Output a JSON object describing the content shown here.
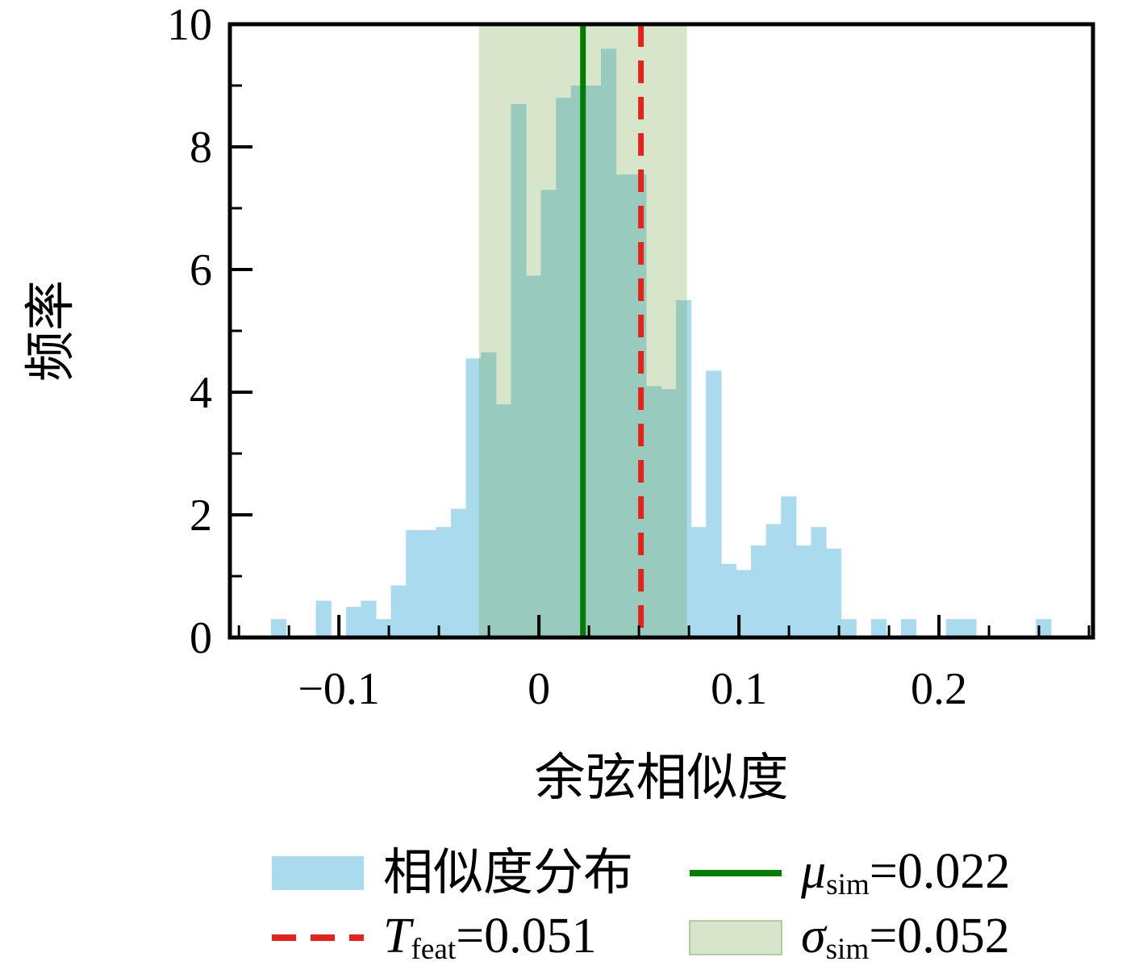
{
  "figure": {
    "background": "#ffffff"
  },
  "chart_data": {
    "type": "bar",
    "title": "",
    "xlabel": "余弦相似度",
    "ylabel": "频率",
    "xlim": [
      -0.1545,
      0.277
    ],
    "ylim": [
      0,
      10
    ],
    "grid": false,
    "legend_position": "below plot, 2 columns",
    "bin_width": 0.0075,
    "bins": [
      [
        -0.134,
        0.3
      ],
      [
        -0.1115,
        0.6
      ],
      [
        -0.0965,
        0.5
      ],
      [
        -0.089,
        0.6
      ],
      [
        -0.0815,
        0.3
      ],
      [
        -0.074,
        0.85
      ],
      [
        -0.0665,
        1.75
      ],
      [
        -0.059,
        1.75
      ],
      [
        -0.0515,
        1.8
      ],
      [
        -0.044,
        2.1
      ],
      [
        -0.0365,
        4.55
      ],
      [
        -0.029,
        4.65
      ],
      [
        -0.0215,
        3.8
      ],
      [
        -0.014,
        8.7
      ],
      [
        -0.0065,
        5.9
      ],
      [
        0.001,
        7.3
      ],
      [
        0.0085,
        8.8
      ],
      [
        0.016,
        9.0
      ],
      [
        0.0235,
        9.0
      ],
      [
        0.031,
        9.6
      ],
      [
        0.0385,
        7.55
      ],
      [
        0.046,
        7.55
      ],
      [
        0.0535,
        4.1
      ],
      [
        0.061,
        4.05
      ],
      [
        0.0685,
        5.5
      ],
      [
        0.076,
        1.8
      ],
      [
        0.0835,
        4.35
      ],
      [
        0.091,
        1.2
      ],
      [
        0.0985,
        1.1
      ],
      [
        0.106,
        1.5
      ],
      [
        0.1135,
        1.85
      ],
      [
        0.121,
        2.3
      ],
      [
        0.1285,
        1.5
      ],
      [
        0.136,
        1.8
      ],
      [
        0.1435,
        1.45
      ],
      [
        0.151,
        0.3
      ],
      [
        0.166,
        0.3
      ],
      [
        0.181,
        0.3
      ],
      [
        0.2035,
        0.3
      ],
      [
        0.211,
        0.3
      ],
      [
        0.2485,
        0.3
      ]
    ],
    "xticks": [
      {
        "value": -0.1,
        "label": "−0.1"
      },
      {
        "value": 0.0,
        "label": "0"
      },
      {
        "value": 0.1,
        "label": "0.1"
      },
      {
        "value": 0.2,
        "label": "0.2"
      }
    ],
    "yticks": [
      {
        "value": 0,
        "label": "0"
      },
      {
        "value": 2,
        "label": "2"
      },
      {
        "value": 4,
        "label": "4"
      },
      {
        "value": 6,
        "label": "6"
      },
      {
        "value": 8,
        "label": "8"
      },
      {
        "value": 10,
        "label": "10"
      }
    ],
    "x_minor_step": 0.025,
    "y_minor_step": 1,
    "overlays": {
      "mu_line": {
        "value": 0.022,
        "style": "solid"
      },
      "t_line": {
        "value": 0.051,
        "style": "dashed"
      },
      "sigma_band": {
        "center": 0.022,
        "halfwidth": 0.052
      }
    },
    "colors": {
      "hist": "#a9daee",
      "band": "rgba(110,160,70,0.28)",
      "band_edge": "rgba(110,160,70,0.45)",
      "mu_line": "#007d00",
      "t_line": "#e3241c",
      "axis": "#000000"
    }
  },
  "legend": {
    "hist": {
      "label": "相似度分布"
    },
    "t": {
      "symbol": "T",
      "sub": "feat",
      "value": "=0.051"
    },
    "mu": {
      "symbol": "μ",
      "sub": "sim",
      "value": "=0.022"
    },
    "sigma": {
      "symbol": "σ",
      "sub": "sim",
      "value": "=0.052"
    }
  }
}
